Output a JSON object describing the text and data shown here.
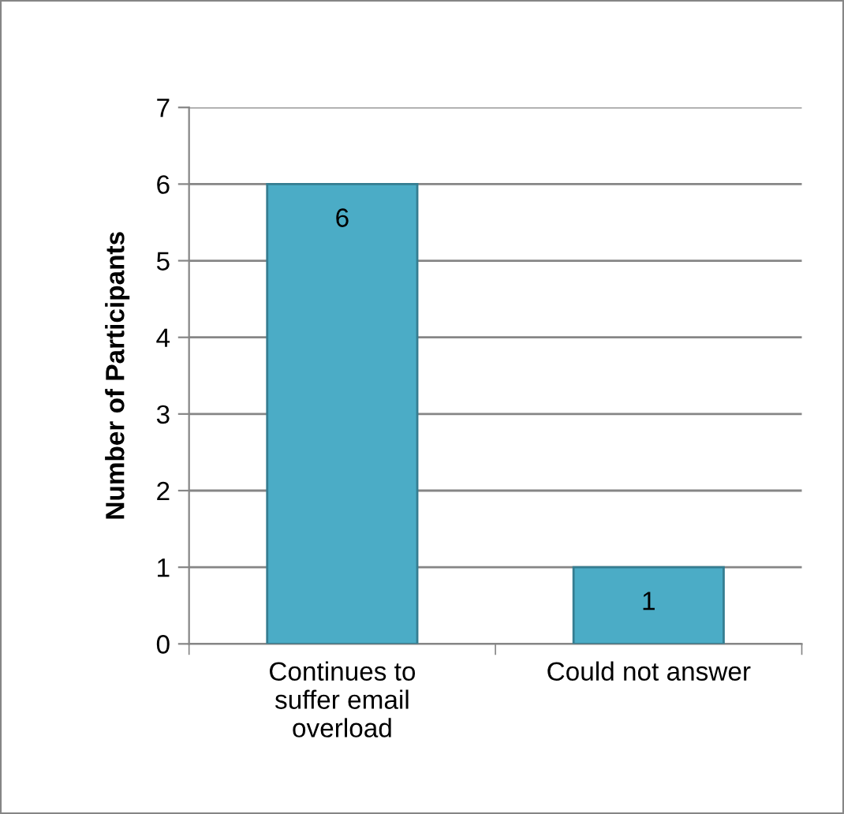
{
  "chart_data": {
    "type": "bar",
    "ylabel": "Number of Participants",
    "categories": [
      "Continues to\nsuffer email\noverload",
      "Could not answer"
    ],
    "values": [
      6,
      1
    ],
    "color": "#4bacc6",
    "ylim": [
      0,
      7
    ],
    "yticks": [
      0,
      1,
      2,
      3,
      4,
      5,
      6,
      7
    ],
    "grid": "y",
    "data_labels": true
  }
}
